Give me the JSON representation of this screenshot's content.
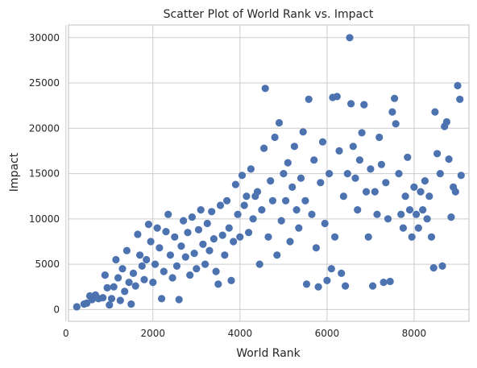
{
  "chart_data": {
    "type": "scatter",
    "title": "Scatter Plot of World Rank vs. Impact",
    "xlabel": "World Rank",
    "ylabel": "Impact",
    "xlim": [
      60,
      9260
    ],
    "ylim": [
      -1300,
      31400
    ],
    "xticks": [
      0,
      2000,
      4000,
      6000,
      8000
    ],
    "yticks": [
      0,
      5000,
      10000,
      15000,
      20000,
      25000,
      30000
    ],
    "grid": true,
    "marker_color": "#4c72b0",
    "series": [
      {
        "points": [
          [
            250,
            300
          ],
          [
            420,
            600
          ],
          [
            480,
            700
          ],
          [
            550,
            1500
          ],
          [
            600,
            1100
          ],
          [
            680,
            1600
          ],
          [
            750,
            1200
          ],
          [
            850,
            1300
          ],
          [
            900,
            3800
          ],
          [
            950,
            2400
          ],
          [
            1000,
            500
          ],
          [
            1050,
            1200
          ],
          [
            1100,
            2500
          ],
          [
            1150,
            5500
          ],
          [
            1200,
            3500
          ],
          [
            1250,
            1000
          ],
          [
            1300,
            4500
          ],
          [
            1350,
            2000
          ],
          [
            1400,
            6500
          ],
          [
            1450,
            3000
          ],
          [
            1500,
            600
          ],
          [
            1550,
            4000
          ],
          [
            1600,
            2600
          ],
          [
            1650,
            8300
          ],
          [
            1700,
            6000
          ],
          [
            1750,
            4800
          ],
          [
            1800,
            3300
          ],
          [
            1850,
            5500
          ],
          [
            1900,
            9400
          ],
          [
            1950,
            7500
          ],
          [
            2000,
            3000
          ],
          [
            2050,
            5000
          ],
          [
            2100,
            9000
          ],
          [
            2150,
            6800
          ],
          [
            2200,
            1200
          ],
          [
            2250,
            4200
          ],
          [
            2300,
            8600
          ],
          [
            2350,
            10500
          ],
          [
            2400,
            6000
          ],
          [
            2450,
            3500
          ],
          [
            2500,
            8000
          ],
          [
            2550,
            4800
          ],
          [
            2600,
            1100
          ],
          [
            2650,
            7000
          ],
          [
            2700,
            9800
          ],
          [
            2750,
            5800
          ],
          [
            2800,
            8500
          ],
          [
            2850,
            3800
          ],
          [
            2900,
            10200
          ],
          [
            2950,
            6200
          ],
          [
            3000,
            4500
          ],
          [
            3050,
            8800
          ],
          [
            3100,
            11000
          ],
          [
            3150,
            7200
          ],
          [
            3200,
            5000
          ],
          [
            3250,
            9500
          ],
          [
            3300,
            6500
          ],
          [
            3350,
            10800
          ],
          [
            3400,
            7800
          ],
          [
            3450,
            4200
          ],
          [
            3500,
            2800
          ],
          [
            3550,
            11500
          ],
          [
            3600,
            8200
          ],
          [
            3650,
            6000
          ],
          [
            3700,
            12000
          ],
          [
            3750,
            9000
          ],
          [
            3800,
            3200
          ],
          [
            3850,
            7500
          ],
          [
            3900,
            13800
          ],
          [
            3950,
            10500
          ],
          [
            4000,
            8000
          ],
          [
            4050,
            14800
          ],
          [
            4100,
            11500
          ],
          [
            4150,
            12500
          ],
          [
            4200,
            8500
          ],
          [
            4250,
            15500
          ],
          [
            4300,
            10000
          ],
          [
            4350,
            12500
          ],
          [
            4400,
            13000
          ],
          [
            4450,
            5000
          ],
          [
            4500,
            11000
          ],
          [
            4550,
            17800
          ],
          [
            4580,
            24400
          ],
          [
            4650,
            8000
          ],
          [
            4700,
            14200
          ],
          [
            4750,
            12000
          ],
          [
            4800,
            19000
          ],
          [
            4850,
            6000
          ],
          [
            4900,
            20600
          ],
          [
            4950,
            9800
          ],
          [
            5000,
            15000
          ],
          [
            5050,
            12000
          ],
          [
            5100,
            16200
          ],
          [
            5150,
            7500
          ],
          [
            5200,
            13500
          ],
          [
            5250,
            18000
          ],
          [
            5300,
            11000
          ],
          [
            5350,
            9000
          ],
          [
            5400,
            14500
          ],
          [
            5450,
            19600
          ],
          [
            5500,
            12000
          ],
          [
            5530,
            2800
          ],
          [
            5580,
            23200
          ],
          [
            5650,
            10500
          ],
          [
            5700,
            16500
          ],
          [
            5750,
            6800
          ],
          [
            5800,
            2500
          ],
          [
            5850,
            14000
          ],
          [
            5900,
            18500
          ],
          [
            5950,
            9500
          ],
          [
            6000,
            3200
          ],
          [
            6050,
            15000
          ],
          [
            6100,
            4500
          ],
          [
            6130,
            23400
          ],
          [
            6180,
            8000
          ],
          [
            6230,
            23500
          ],
          [
            6280,
            17500
          ],
          [
            6330,
            4000
          ],
          [
            6380,
            12500
          ],
          [
            6420,
            2600
          ],
          [
            6470,
            15000
          ],
          [
            6520,
            30000
          ],
          [
            6550,
            22700
          ],
          [
            6600,
            18000
          ],
          [
            6650,
            14500
          ],
          [
            6700,
            11000
          ],
          [
            6750,
            16500
          ],
          [
            6800,
            19500
          ],
          [
            6850,
            22600
          ],
          [
            6900,
            13000
          ],
          [
            6950,
            8000
          ],
          [
            7000,
            15500
          ],
          [
            7050,
            2600
          ],
          [
            7100,
            13000
          ],
          [
            7150,
            10500
          ],
          [
            7200,
            19000
          ],
          [
            7250,
            16000
          ],
          [
            7300,
            3000
          ],
          [
            7350,
            14000
          ],
          [
            7400,
            10000
          ],
          [
            7450,
            3100
          ],
          [
            7500,
            21800
          ],
          [
            7550,
            23300
          ],
          [
            7580,
            20500
          ],
          [
            7650,
            15000
          ],
          [
            7700,
            10500
          ],
          [
            7750,
            9000
          ],
          [
            7800,
            12500
          ],
          [
            7850,
            16800
          ],
          [
            7900,
            11000
          ],
          [
            7950,
            8000
          ],
          [
            8000,
            13500
          ],
          [
            8050,
            10500
          ],
          [
            8100,
            9000
          ],
          [
            8150,
            13000
          ],
          [
            8200,
            11000
          ],
          [
            8250,
            14200
          ],
          [
            8300,
            10000
          ],
          [
            8350,
            12500
          ],
          [
            8400,
            8000
          ],
          [
            8450,
            4600
          ],
          [
            8480,
            21800
          ],
          [
            8530,
            17200
          ],
          [
            8600,
            15000
          ],
          [
            8650,
            4800
          ],
          [
            8700,
            20200
          ],
          [
            8750,
            20700
          ],
          [
            8800,
            16600
          ],
          [
            8850,
            10200
          ],
          [
            8900,
            13500
          ],
          [
            8950,
            13000
          ],
          [
            9000,
            24700
          ],
          [
            9050,
            23200
          ],
          [
            9080,
            14800
          ]
        ]
      }
    ]
  }
}
